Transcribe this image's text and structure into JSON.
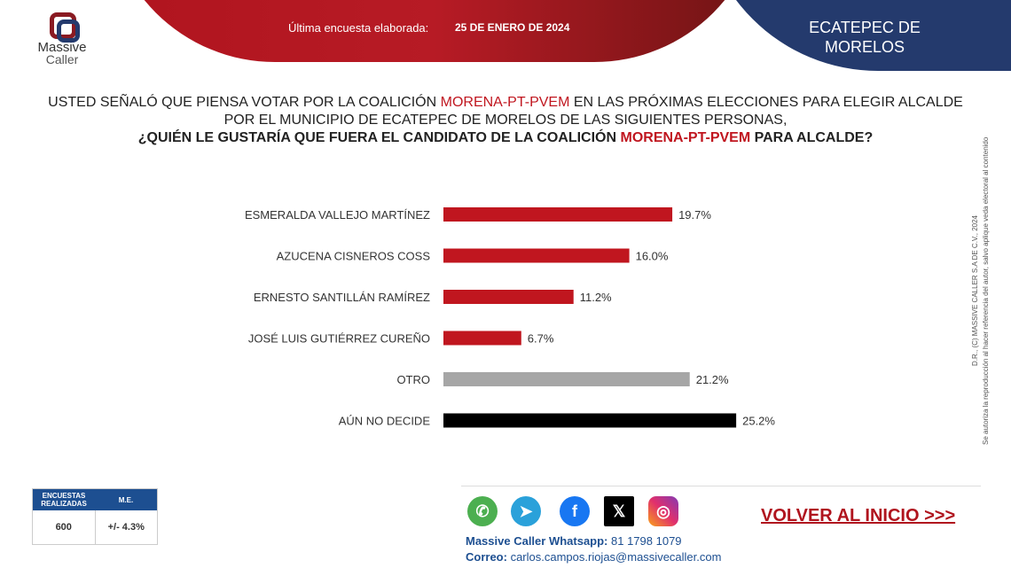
{
  "header": {
    "survey_label": "Última encuesta elaborada:",
    "survey_date": "25 DE ENERO DE 2024",
    "region": "ECATEPEC DE MORELOS",
    "logo_text": [
      "Massive",
      "Caller"
    ]
  },
  "question": {
    "line1_a": "USTED SEÑALÓ QUE PIENSA VOTAR POR LA COALICIÓN ",
    "line1_b": "MORENA-PT-PVEM",
    "line1_c": " EN LAS PRÓXIMAS ELECCIONES PARA ELEGIR ALCALDE",
    "line2": "POR EL MUNICIPIO DE ECATEPEC DE MORELOS DE LAS SIGUIENTES PERSONAS,",
    "line3_a": "¿QUIÉN LE GUSTARÍA QUE FUERA EL CANDIDATO DE LA COALICIÓN ",
    "line3_b": "MORENA-PT-PVEM",
    "line3_c": " PARA ALCALDE?"
  },
  "chart_data": {
    "type": "bar",
    "orientation": "horizontal",
    "categories": [
      "ESMERALDA VALLEJO MARTÍNEZ",
      "AZUCENA CISNEROS COSS",
      "ERNESTO SANTILLÁN RAMÍREZ",
      "JOSÉ LUIS GUTIÉRREZ CUREÑO",
      "OTRO",
      "AÚN NO DECIDE"
    ],
    "values": [
      19.7,
      16.0,
      11.2,
      6.7,
      21.2,
      25.2
    ],
    "labels": [
      "19.7%",
      "16.0%",
      "11.2%",
      "6.7%",
      "21.2%",
      "25.2%"
    ],
    "colors": [
      "#c0161f",
      "#c0161f",
      "#c0161f",
      "#c0161f",
      "#a6a6a6",
      "#000000"
    ],
    "grid": false
  },
  "side_note": {
    "line1": "D.R., (C) MASSIVE CALLER S.A DE C.V., 2024",
    "line2": "Se autoriza la reproducción al hacer referencia del autor, salvo aplique veda electoral al contenido"
  },
  "stats": {
    "h1": "ENCUESTAS REALIZADAS",
    "h2": "M.E.",
    "v1": "600",
    "v2": "+/- 4.3%"
  },
  "footer": {
    "social": [
      "whatsapp-icon",
      "telegram-icon",
      "facebook-icon",
      "x-icon",
      "instagram-icon"
    ],
    "wa_label": "Massive Caller Whatsapp:",
    "wa_number": " 81 1798 1079",
    "mail_label": "Correo:",
    "mail": " carlos.campos.riojas@massivecaller.com",
    "back": "VOLVER AL INICIO >>>"
  }
}
